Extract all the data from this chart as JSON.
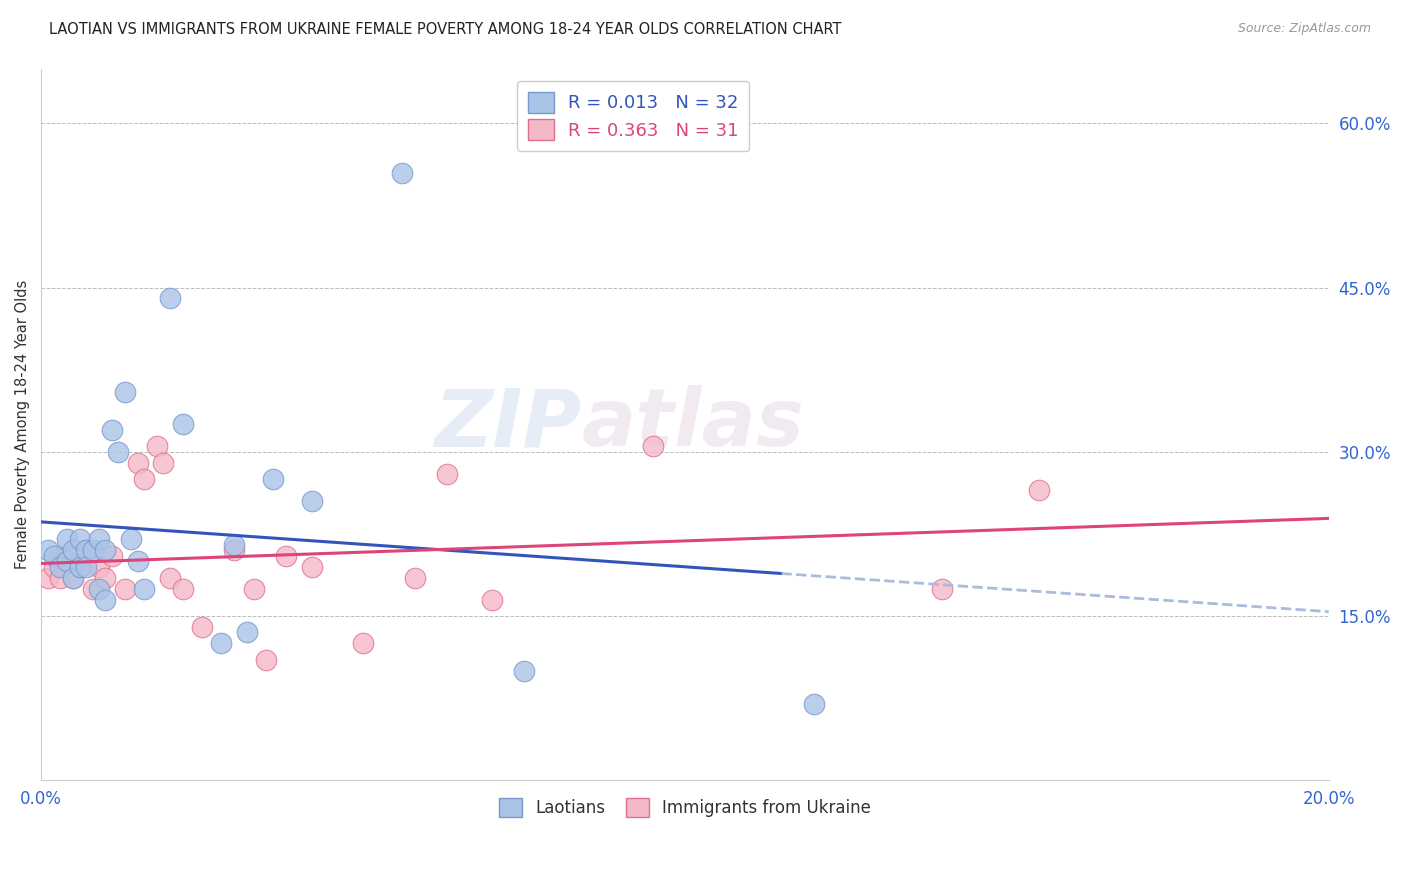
{
  "title": "LAOTIAN VS IMMIGRANTS FROM UKRAINE FEMALE POVERTY AMONG 18-24 YEAR OLDS CORRELATION CHART",
  "source": "Source: ZipAtlas.com",
  "ylabel": "Female Poverty Among 18-24 Year Olds",
  "xlim": [
    0.0,
    0.2
  ],
  "ylim": [
    0.0,
    0.65
  ],
  "xticks": [
    0.0,
    0.05,
    0.1,
    0.15,
    0.2
  ],
  "xtick_labels": [
    "0.0%",
    "",
    "",
    "",
    "20.0%"
  ],
  "ytick_labels_right": [
    "60.0%",
    "45.0%",
    "30.0%",
    "15.0%"
  ],
  "ytick_positions_right": [
    0.6,
    0.45,
    0.3,
    0.15
  ],
  "laotian_color": "#aac4e8",
  "ukraine_color": "#f5b8c8",
  "laotian_edge": "#7799cc",
  "ukraine_edge": "#e07090",
  "line_laotian": "#3355bb",
  "line_ukraine": "#dd4477",
  "line_laotian_solid_end": 0.115,
  "R_laotian": 0.013,
  "N_laotian": 32,
  "R_ukraine": 0.363,
  "N_ukraine": 31,
  "legend_label_1": "Laotians",
  "legend_label_2": "Immigrants from Ukraine",
  "watermark_zip": "ZIP",
  "watermark_atlas": "atlas",
  "laotian_x": [
    0.001,
    0.002,
    0.003,
    0.004,
    0.004,
    0.005,
    0.005,
    0.006,
    0.006,
    0.007,
    0.007,
    0.008,
    0.009,
    0.009,
    0.01,
    0.01,
    0.011,
    0.012,
    0.013,
    0.014,
    0.015,
    0.016,
    0.02,
    0.022,
    0.028,
    0.03,
    0.032,
    0.036,
    0.042,
    0.056,
    0.075,
    0.12
  ],
  "laotian_y": [
    0.21,
    0.205,
    0.195,
    0.22,
    0.2,
    0.21,
    0.185,
    0.22,
    0.195,
    0.21,
    0.195,
    0.21,
    0.22,
    0.175,
    0.165,
    0.21,
    0.32,
    0.3,
    0.355,
    0.22,
    0.2,
    0.175,
    0.44,
    0.325,
    0.125,
    0.215,
    0.135,
    0.275,
    0.255,
    0.555,
    0.1,
    0.07
  ],
  "ukraine_x": [
    0.001,
    0.002,
    0.003,
    0.004,
    0.005,
    0.006,
    0.007,
    0.008,
    0.009,
    0.01,
    0.011,
    0.013,
    0.015,
    0.016,
    0.018,
    0.019,
    0.02,
    0.022,
    0.025,
    0.03,
    0.033,
    0.035,
    0.038,
    0.042,
    0.05,
    0.058,
    0.063,
    0.07,
    0.095,
    0.14,
    0.155
  ],
  "ukraine_y": [
    0.185,
    0.195,
    0.185,
    0.205,
    0.185,
    0.195,
    0.21,
    0.175,
    0.195,
    0.185,
    0.205,
    0.175,
    0.29,
    0.275,
    0.305,
    0.29,
    0.185,
    0.175,
    0.14,
    0.21,
    0.175,
    0.11,
    0.205,
    0.195,
    0.125,
    0.185,
    0.28,
    0.165,
    0.305,
    0.175,
    0.265
  ]
}
